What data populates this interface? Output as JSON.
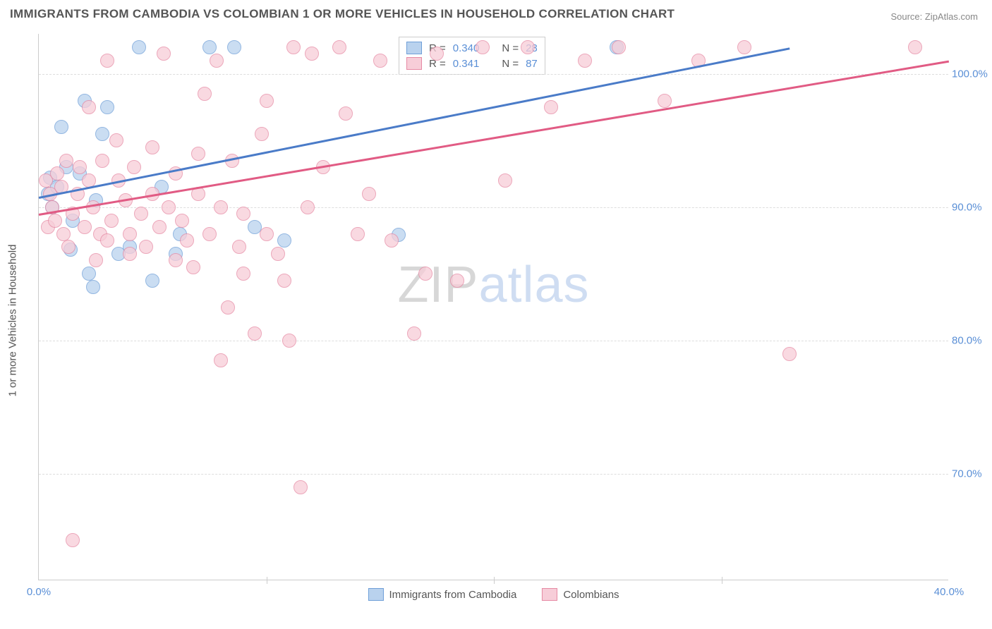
{
  "title": "IMMIGRANTS FROM CAMBODIA VS COLOMBIAN 1 OR MORE VEHICLES IN HOUSEHOLD CORRELATION CHART",
  "source": "Source: ZipAtlas.com",
  "ylabel": "1 or more Vehicles in Household",
  "watermark_zip": "ZIP",
  "watermark_atlas": "atlas",
  "chart": {
    "type": "scatter",
    "xlim": [
      0,
      40
    ],
    "ylim": [
      62,
      103
    ],
    "xticks": [
      0,
      10,
      20,
      30,
      40
    ],
    "xtick_labels": [
      "0.0%",
      "",
      "",
      "",
      "40.0%"
    ],
    "yticks": [
      70,
      80,
      90,
      100
    ],
    "ytick_labels": [
      "70.0%",
      "80.0%",
      "90.0%",
      "100.0%"
    ],
    "background_color": "#ffffff",
    "grid_color": "#dddddd",
    "axis_label_color": "#5a8fd6",
    "point_radius": 10,
    "series": [
      {
        "name": "Immigrants from Cambodia",
        "fill": "#b9d2ee",
        "stroke": "#6f9fd8",
        "trend_color": "#4a7bc8",
        "R": "0.340",
        "N": "28",
        "trend": {
          "x1": 0,
          "y1": 90.8,
          "x2": 33,
          "y2": 102
        },
        "points": [
          [
            0.4,
            91.0
          ],
          [
            0.5,
            92.2
          ],
          [
            0.6,
            90.0
          ],
          [
            0.8,
            91.5
          ],
          [
            1.0,
            96.0
          ],
          [
            1.2,
            93.0
          ],
          [
            1.4,
            86.8
          ],
          [
            1.5,
            89.0
          ],
          [
            1.8,
            92.5
          ],
          [
            2.0,
            98.0
          ],
          [
            2.2,
            85.0
          ],
          [
            2.4,
            84.0
          ],
          [
            2.5,
            90.5
          ],
          [
            2.8,
            95.5
          ],
          [
            3.0,
            97.5
          ],
          [
            3.5,
            86.5
          ],
          [
            4.0,
            87.0
          ],
          [
            4.4,
            102.0
          ],
          [
            5.0,
            84.5
          ],
          [
            5.4,
            91.5
          ],
          [
            6.0,
            86.5
          ],
          [
            6.2,
            88.0
          ],
          [
            7.5,
            102.0
          ],
          [
            8.6,
            102.0
          ],
          [
            9.5,
            88.5
          ],
          [
            10.8,
            87.5
          ],
          [
            15.8,
            87.9
          ],
          [
            25.4,
            102.0
          ]
        ]
      },
      {
        "name": "Colombians",
        "fill": "#f7cdd8",
        "stroke": "#e68aa4",
        "trend_color": "#e15b84",
        "R": "0.341",
        "N": "87",
        "trend": {
          "x1": 0,
          "y1": 89.5,
          "x2": 40,
          "y2": 101
        },
        "points": [
          [
            0.3,
            92.0
          ],
          [
            0.4,
            88.5
          ],
          [
            0.5,
            91.0
          ],
          [
            0.6,
            90.0
          ],
          [
            0.7,
            89.0
          ],
          [
            0.8,
            92.5
          ],
          [
            1.0,
            91.5
          ],
          [
            1.1,
            88.0
          ],
          [
            1.2,
            93.5
          ],
          [
            1.3,
            87.0
          ],
          [
            1.5,
            65.0
          ],
          [
            1.5,
            89.5
          ],
          [
            1.7,
            91.0
          ],
          [
            1.8,
            93.0
          ],
          [
            2.0,
            88.5
          ],
          [
            2.2,
            92.0
          ],
          [
            2.2,
            97.5
          ],
          [
            2.4,
            90.0
          ],
          [
            2.5,
            86.0
          ],
          [
            2.7,
            88.0
          ],
          [
            2.8,
            93.5
          ],
          [
            3.0,
            87.5
          ],
          [
            3.0,
            101.0
          ],
          [
            3.2,
            89.0
          ],
          [
            3.4,
            95.0
          ],
          [
            3.5,
            92.0
          ],
          [
            3.8,
            90.5
          ],
          [
            4.0,
            88.0
          ],
          [
            4.0,
            86.5
          ],
          [
            4.2,
            93.0
          ],
          [
            4.5,
            89.5
          ],
          [
            4.7,
            87.0
          ],
          [
            5.0,
            94.5
          ],
          [
            5.0,
            91.0
          ],
          [
            5.3,
            88.5
          ],
          [
            5.5,
            101.5
          ],
          [
            5.7,
            90.0
          ],
          [
            6.0,
            92.5
          ],
          [
            6.0,
            86.0
          ],
          [
            6.3,
            89.0
          ],
          [
            6.5,
            87.5
          ],
          [
            6.8,
            85.5
          ],
          [
            7.0,
            94.0
          ],
          [
            7.0,
            91.0
          ],
          [
            7.3,
            98.5
          ],
          [
            7.5,
            88.0
          ],
          [
            7.8,
            101.0
          ],
          [
            8.0,
            78.5
          ],
          [
            8.0,
            90.0
          ],
          [
            8.3,
            82.5
          ],
          [
            8.5,
            93.5
          ],
          [
            8.8,
            87.0
          ],
          [
            9.0,
            85.0
          ],
          [
            9.0,
            89.5
          ],
          [
            9.5,
            80.5
          ],
          [
            9.8,
            95.5
          ],
          [
            10.0,
            88.0
          ],
          [
            10.0,
            98.0
          ],
          [
            10.5,
            86.5
          ],
          [
            10.8,
            84.5
          ],
          [
            11.0,
            80.0
          ],
          [
            11.2,
            102.0
          ],
          [
            11.5,
            69.0
          ],
          [
            11.8,
            90.0
          ],
          [
            12.0,
            101.5
          ],
          [
            12.5,
            93.0
          ],
          [
            13.2,
            102.0
          ],
          [
            13.5,
            97.0
          ],
          [
            14.0,
            88.0
          ],
          [
            14.5,
            91.0
          ],
          [
            15.0,
            101.0
          ],
          [
            15.5,
            87.5
          ],
          [
            16.5,
            80.5
          ],
          [
            17.0,
            85.0
          ],
          [
            17.5,
            101.5
          ],
          [
            18.4,
            84.5
          ],
          [
            19.5,
            102.0
          ],
          [
            20.5,
            92.0
          ],
          [
            21.5,
            102.0
          ],
          [
            22.5,
            97.5
          ],
          [
            24.0,
            101.0
          ],
          [
            25.5,
            102.0
          ],
          [
            27.5,
            98.0
          ],
          [
            29.0,
            101.0
          ],
          [
            31.0,
            102.0
          ],
          [
            33.0,
            79.0
          ],
          [
            38.5,
            102.0
          ]
        ]
      }
    ],
    "legend_labels": {
      "R": "R =",
      "N": "N ="
    }
  },
  "bottom_legend": [
    "Immigrants from Cambodia",
    "Colombians"
  ]
}
